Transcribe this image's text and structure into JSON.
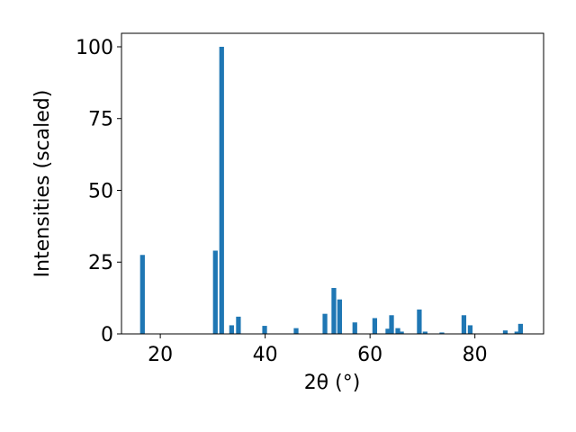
{
  "chart_data": {
    "type": "bar",
    "xlabel": "2θ (°)",
    "ylabel": "Intensities (scaled)",
    "color": "#1f77b4",
    "x": [
      16.6,
      30.5,
      31.7,
      33.6,
      34.9,
      39.9,
      45.9,
      51.4,
      53.1,
      54.2,
      57.1,
      60.9,
      63.4,
      64.1,
      65.3,
      66.0,
      69.4,
      70.5,
      73.7,
      77.9,
      79.1,
      85.8,
      88.0,
      88.7
    ],
    "values": [
      27.5,
      29,
      100,
      3,
      6,
      2.8,
      2,
      7,
      16,
      12,
      4,
      5.5,
      1.8,
      6.5,
      2,
      0.8,
      8.5,
      0.8,
      0.5,
      6.5,
      3,
      1.2,
      0.8,
      3.5
    ],
    "xlim": [
      12.6,
      93.1
    ],
    "xticks": [
      20,
      40,
      60,
      80
    ],
    "ylim": [
      0,
      104.7
    ],
    "yticks": [
      0,
      25,
      50,
      75,
      100
    ]
  }
}
